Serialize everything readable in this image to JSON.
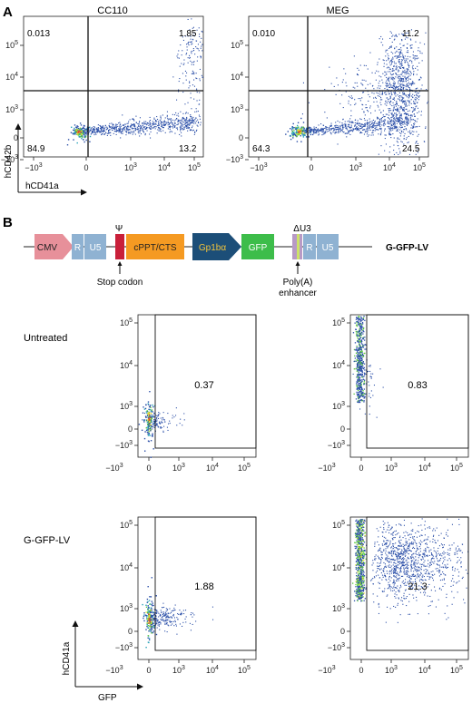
{
  "panel_a": {
    "letter": "A",
    "y_axis_label": "hCD42b",
    "x_axis_label": "hCD41a",
    "tick_x": [
      "-10^3",
      "0",
      "10^3",
      "10^4",
      "10^5"
    ],
    "tick_y": [
      "10^5",
      "10^4",
      "10^3",
      "0",
      "-10^3"
    ],
    "plots": [
      {
        "title": "CC110",
        "quadrants": {
          "ul": "0.013",
          "ur": "1.85",
          "ll": "84.9",
          "lr": "13.2"
        }
      },
      {
        "title": "MEG",
        "quadrants": {
          "ul": "0.010",
          "ur": "11.2",
          "ll": "64.3",
          "lr": "24.5"
        }
      }
    ]
  },
  "panel_b": {
    "letter": "B",
    "construct": {
      "cmv": "CMV",
      "r1": "R",
      "u5_1": "U5",
      "psi": "Ψ",
      "cppt": "cPPT/CTS",
      "promoter": "Gp1bα",
      "gfp": "GFP",
      "delta_u3": "ΔU3",
      "r2": "R",
      "u5_2": "U5",
      "vector_name": "G-GFP-LV",
      "stop_codon": "Stop codon",
      "polya_line1": "Poly(A)",
      "polya_line2": "enhancer"
    },
    "row_labels": [
      "Untreated",
      "G-GFP-LV"
    ],
    "y_axis_label": "hCD41a",
    "x_axis_label": "GFP",
    "plots": [
      {
        "gate_value": "0.37"
      },
      {
        "gate_value": "0.83"
      },
      {
        "gate_value": "1.88"
      },
      {
        "gate_value": "21.3"
      }
    ]
  },
  "colors": {
    "dot": "#2b4fa8",
    "dense_green": "#5ecb3c",
    "dense_yellow": "#e8e02a",
    "dense_red": "#e04a2a",
    "cmv": "#e7909a",
    "ltr": "#8fb2d2",
    "psi": "#c9203a",
    "cppt": "#f59a22",
    "promoter": "#1c4e78",
    "promoter_text": "#f2c33c",
    "gfp": "#3dbd4a",
    "du3": "#b89ac6"
  }
}
